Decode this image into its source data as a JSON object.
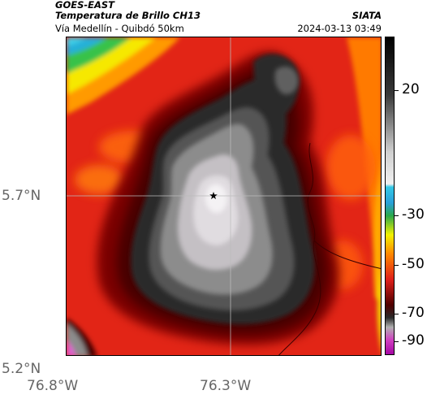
{
  "header": {
    "satellite": "GOES-EAST",
    "product": "Temperatura de Brillo CH13",
    "region": "Vía Medellín - Quibdó 50km",
    "organization": "SIATA",
    "timestamp": "2024-03-13 03:49"
  },
  "map": {
    "lat_ticks": [
      "5.7°N",
      "5.2°N"
    ],
    "lon_ticks": [
      "76.8°W",
      "76.3°W"
    ],
    "marker": "star-marker"
  },
  "colorbar": {
    "labels": [
      "20",
      "-30",
      "-50",
      "-70",
      "-90"
    ],
    "colors": {
      "top": "#0a0a0a",
      "cyan": "#33c8e6",
      "green": "#2aa84a",
      "yellow": "#f2f200",
      "orange": "#ff8800",
      "red": "#e0201a",
      "darkred": "#500000",
      "magenta": "#d040c0",
      "bottom": "#a000a0"
    }
  }
}
